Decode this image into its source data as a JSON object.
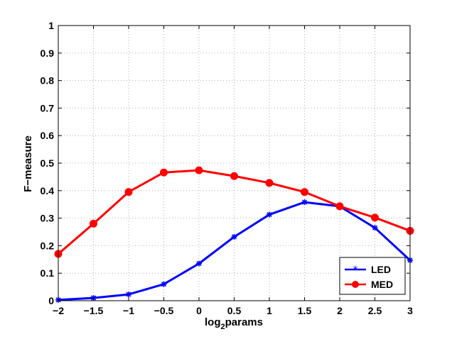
{
  "chart_data": {
    "type": "line",
    "title": "",
    "xlabel": "log",
    "xlabel_sub": "2",
    "xlabel_rest": "params",
    "ylabel": "F−measure",
    "xlim": [
      -2,
      3
    ],
    "ylim": [
      0,
      1
    ],
    "grid": true,
    "legend_position": "bottom-right",
    "x": [
      -2,
      -1.5,
      -1,
      -0.5,
      0,
      0.5,
      1,
      1.5,
      2,
      2.5,
      3
    ],
    "x_tick_labels": [
      "−2",
      "−1.5",
      "−1",
      "−0.5",
      "0",
      "0.5",
      "1",
      "1.5",
      "2",
      "2.5",
      "3"
    ],
    "y_ticks": [
      0,
      0.1,
      0.2,
      0.3,
      0.4,
      0.5,
      0.6,
      0.7,
      0.8,
      0.9,
      1
    ],
    "y_tick_labels": [
      "0",
      "0.1",
      "0.2",
      "0.3",
      "0.4",
      "0.5",
      "0.6",
      "0.7",
      "0.8",
      "0.9",
      "1"
    ],
    "series": [
      {
        "name": "LED",
        "color": "#0000ff",
        "marker": "star",
        "values": [
          0.003,
          0.01,
          0.023,
          0.06,
          0.135,
          0.232,
          0.313,
          0.358,
          0.343,
          0.265,
          0.147
        ]
      },
      {
        "name": "MED",
        "color": "#ff0000",
        "marker": "circle",
        "values": [
          0.17,
          0.28,
          0.395,
          0.466,
          0.474,
          0.453,
          0.428,
          0.395,
          0.343,
          0.302,
          0.254
        ]
      }
    ]
  }
}
